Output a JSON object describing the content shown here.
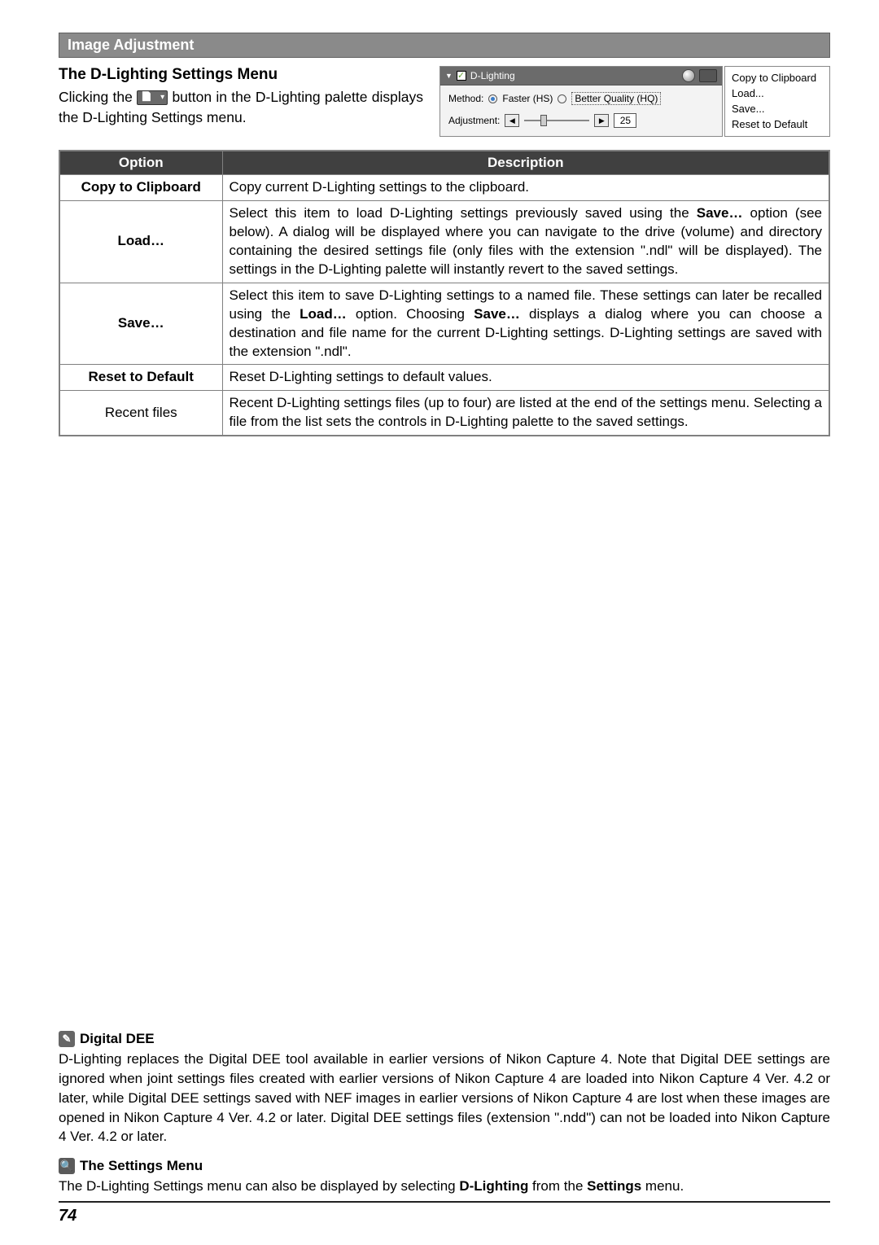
{
  "header": {
    "title": "Image Adjustment"
  },
  "section": {
    "title": "The D-Lighting Settings Menu",
    "body_pre": "Clicking the ",
    "body_post": " button in the D-Lighting palette displays the D-Lighting Settings menu."
  },
  "palette": {
    "title": "D-Lighting",
    "method_label": "Method:",
    "method_faster": "Faster (HS)",
    "method_better": "Better Quality (HQ)",
    "adjustment_label": "Adjustment:",
    "adjustment_value": "25"
  },
  "context_menu": {
    "items": [
      "Copy to Clipboard",
      "Load...",
      "Save...",
      "Reset to Default"
    ]
  },
  "table": {
    "headers": {
      "option": "Option",
      "description": "Description"
    },
    "rows": [
      {
        "option": "Copy to Clipboard",
        "bold": true,
        "desc": "Copy current D-Lighting settings to the clipboard."
      },
      {
        "option": "Load…",
        "bold": true,
        "desc": "Select this item to load D-Lighting settings previously saved using the Save… option (see below). A dialog will be displayed where you can navigate to the drive (volume) and directory containing the desired settings file (only files with the extension \".ndl\" will be displayed). The settings in the D-Lighting palette will instantly revert to the saved settings."
      },
      {
        "option": "Save…",
        "bold": true,
        "desc": "Select this item to save D-Lighting settings to a named file. These settings can later be recalled using the Load… option. Choosing Save… displays a dialog where you can choose a destination and file name for the current D-Lighting settings. D-Lighting settings are saved with the extension \".ndl\"."
      },
      {
        "option": "Reset to Default",
        "bold": true,
        "desc": "Reset D-Lighting settings to default values."
      },
      {
        "option": "Recent files",
        "bold": false,
        "desc": "Recent D-Lighting settings files (up to four) are listed at the end of the settings menu. Selecting a file from the list sets the controls in D-Lighting palette to the saved settings."
      }
    ]
  },
  "notes": {
    "dee_title": "Digital DEE",
    "dee_body": "D-Lighting replaces the Digital DEE tool available in earlier versions of Nikon Capture 4. Note that Digital DEE settings are ignored when joint settings files created with earlier versions of Nikon Capture 4 are loaded into Nikon Capture 4 Ver. 4.2 or later, while Digital DEE settings saved with NEF images in earlier versions of Nikon Capture 4 are lost when these images are opened in Nikon Capture 4 Ver. 4.2 or later. Digital DEE settings files (extension \".ndd\") can not be loaded into Nikon Capture 4 Ver. 4.2 or later.",
    "settings_title": "The Settings Menu",
    "settings_body": "The D-Lighting Settings menu can also be displayed by selecting D-Lighting from the Settings menu."
  },
  "page_number": "74"
}
